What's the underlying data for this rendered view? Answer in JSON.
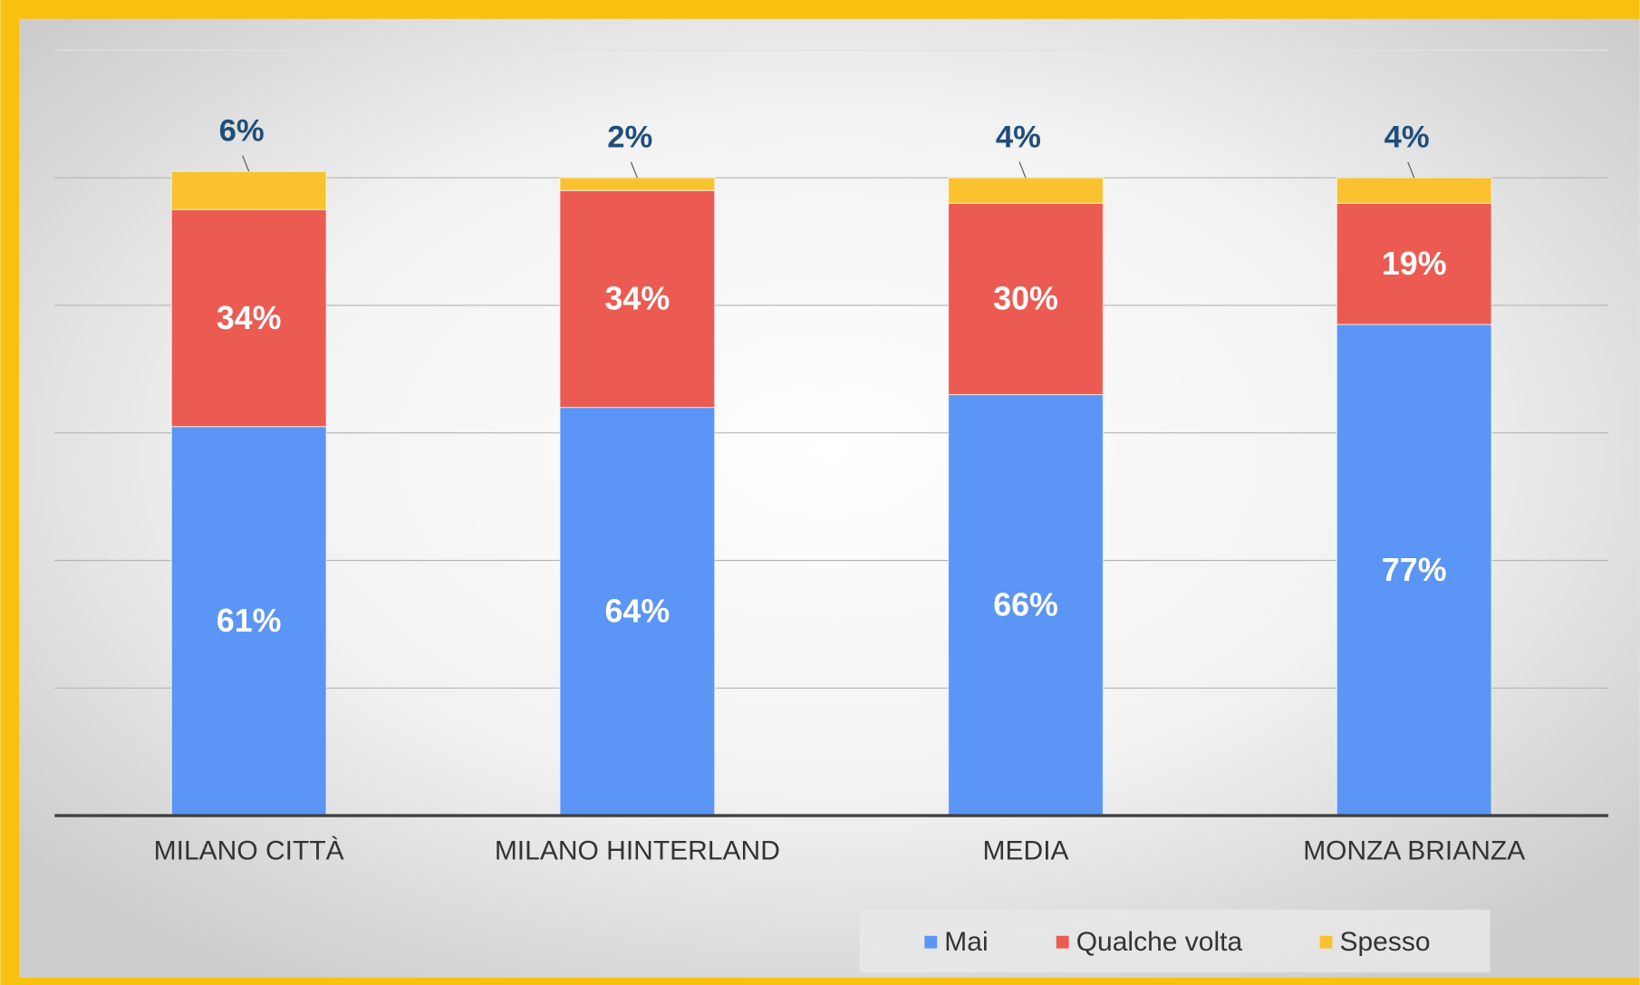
{
  "chart_data": {
    "type": "stacked_bar",
    "categories": [
      "MILANO CITTÀ",
      "MILANO HINTERLAND",
      "MEDIA",
      "MONZA BRIANZA"
    ],
    "series": [
      {
        "name": "Mai",
        "color": "#5b95f5",
        "values": [
          61,
          64,
          66,
          77
        ],
        "value_labels": [
          "61%",
          "64%",
          "66%",
          "77%"
        ]
      },
      {
        "name": "Qualche volta",
        "color": "#ec5b51",
        "values": [
          34,
          34,
          30,
          19
        ],
        "value_labels": [
          "34%",
          "34%",
          "30%",
          "19%"
        ]
      },
      {
        "name": "Spesso",
        "color": "#f9c22e",
        "values": [
          6,
          2,
          4,
          4
        ],
        "value_labels": [
          "6%",
          "2%",
          "4%",
          "4%"
        ]
      }
    ],
    "ylim": [
      0,
      120
    ],
    "yticks": [
      0,
      20,
      40,
      60,
      80,
      100,
      120
    ],
    "grid": true,
    "legend": "bottom"
  }
}
